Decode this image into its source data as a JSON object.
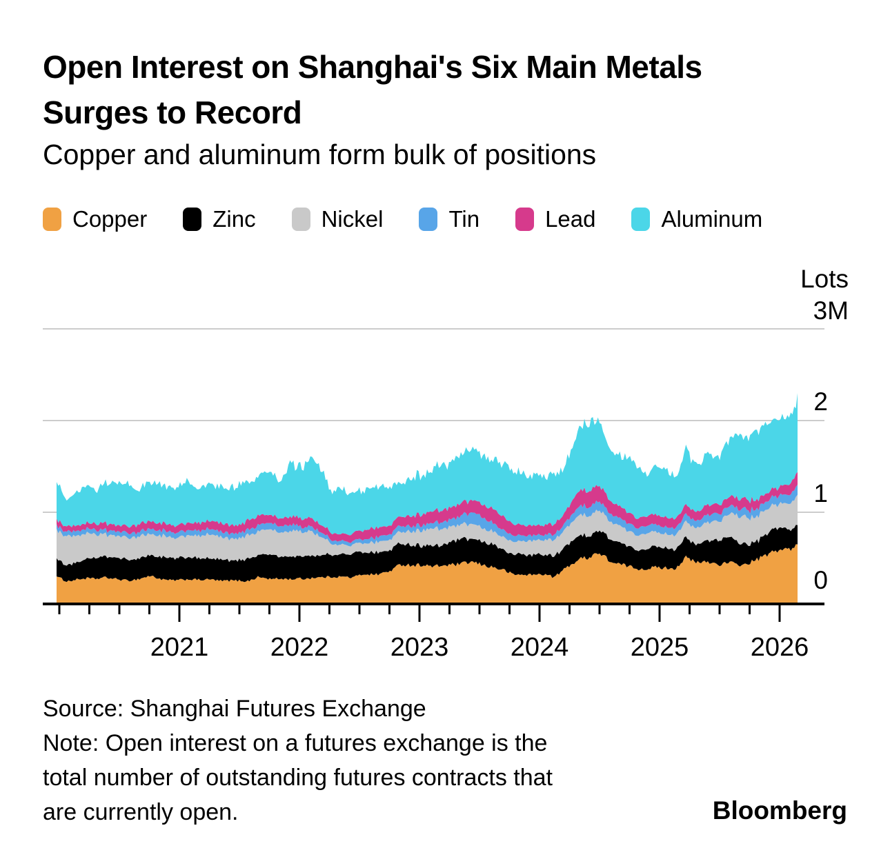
{
  "header": {
    "title_line1": "Open Interest on Shanghai's Six Main Metals",
    "title_line2": "Surges to Record",
    "subtitle": "Copper and aluminum form bulk of positions"
  },
  "legend": {
    "items": [
      {
        "label": "Copper",
        "color": "#F0A143"
      },
      {
        "label": "Zinc",
        "color": "#000000"
      },
      {
        "label": "Nickel",
        "color": "#C9C9C9"
      },
      {
        "label": "Tin",
        "color": "#58A5E8"
      },
      {
        "label": "Lead",
        "color": "#D63A8C"
      },
      {
        "label": "Aluminum",
        "color": "#4BD6E8"
      }
    ]
  },
  "footer": {
    "source": "Source: Shanghai Futures Exchange",
    "note_lines": [
      "Note: Open interest on a futures exchange is the",
      "total number of outstanding futures contracts that",
      "are currently open."
    ],
    "brand": "Bloomberg"
  },
  "chart_data": {
    "type": "area",
    "stacked": true,
    "title": "Open Interest on Shanghai's Six Main Metals Surges to Record",
    "subtitle": "Copper and aluminum form bulk of positions",
    "unit_label": "Lots",
    "y_top_label": "3M",
    "y_ticks": [
      0,
      1,
      2
    ],
    "y_max": 3,
    "ylim": [
      0,
      3
    ],
    "grid_color": "#CCCCCC",
    "axis_color": "#000000",
    "x_start": "2020-01",
    "x_end": "2026-02",
    "sampling": "monthly",
    "x_tick_years": [
      2021,
      2022,
      2023,
      2024,
      2025,
      2026
    ],
    "values_unit": "millions of lots",
    "series": [
      {
        "name": "Copper",
        "color": "#F0A143",
        "values": [
          0.3,
          0.26,
          0.27,
          0.28,
          0.27,
          0.28,
          0.28,
          0.27,
          0.28,
          0.29,
          0.28,
          0.27,
          0.27,
          0.28,
          0.27,
          0.26,
          0.26,
          0.27,
          0.27,
          0.26,
          0.28,
          0.29,
          0.28,
          0.28,
          0.29,
          0.29,
          0.28,
          0.28,
          0.28,
          0.3,
          0.32,
          0.33,
          0.35,
          0.38,
          0.42,
          0.43,
          0.42,
          0.4,
          0.41,
          0.42,
          0.43,
          0.44,
          0.43,
          0.42,
          0.38,
          0.32,
          0.31,
          0.31,
          0.33,
          0.31,
          0.36,
          0.44,
          0.52,
          0.57,
          0.52,
          0.46,
          0.42,
          0.41,
          0.38,
          0.39,
          0.38,
          0.37,
          0.5,
          0.48,
          0.46,
          0.44,
          0.44,
          0.43,
          0.44,
          0.47,
          0.52,
          0.58,
          0.62,
          0.65
        ]
      },
      {
        "name": "Zinc",
        "color": "#000000",
        "values": [
          0.2,
          0.18,
          0.2,
          0.22,
          0.23,
          0.23,
          0.23,
          0.24,
          0.23,
          0.23,
          0.23,
          0.23,
          0.23,
          0.24,
          0.23,
          0.23,
          0.22,
          0.22,
          0.22,
          0.23,
          0.24,
          0.25,
          0.24,
          0.24,
          0.24,
          0.24,
          0.25,
          0.24,
          0.24,
          0.25,
          0.24,
          0.23,
          0.23,
          0.23,
          0.23,
          0.22,
          0.21,
          0.22,
          0.23,
          0.25,
          0.26,
          0.26,
          0.25,
          0.24,
          0.22,
          0.21,
          0.22,
          0.22,
          0.22,
          0.22,
          0.24,
          0.25,
          0.24,
          0.24,
          0.25,
          0.24,
          0.23,
          0.22,
          0.22,
          0.22,
          0.22,
          0.22,
          0.21,
          0.2,
          0.24,
          0.26,
          0.28,
          0.25,
          0.22,
          0.2,
          0.22,
          0.24,
          0.22,
          0.21
        ]
      },
      {
        "name": "Nickel",
        "color": "#C9C9C9",
        "values": [
          0.32,
          0.33,
          0.3,
          0.28,
          0.26,
          0.25,
          0.24,
          0.24,
          0.23,
          0.23,
          0.22,
          0.22,
          0.22,
          0.23,
          0.24,
          0.25,
          0.25,
          0.24,
          0.24,
          0.25,
          0.26,
          0.27,
          0.27,
          0.27,
          0.28,
          0.28,
          0.2,
          0.12,
          0.1,
          0.1,
          0.1,
          0.11,
          0.12,
          0.12,
          0.13,
          0.15,
          0.17,
          0.19,
          0.18,
          0.17,
          0.16,
          0.16,
          0.15,
          0.15,
          0.14,
          0.14,
          0.15,
          0.16,
          0.16,
          0.17,
          0.18,
          0.2,
          0.21,
          0.21,
          0.2,
          0.19,
          0.18,
          0.17,
          0.16,
          0.16,
          0.16,
          0.16,
          0.17,
          0.18,
          0.19,
          0.21,
          0.24,
          0.27,
          0.29,
          0.28,
          0.27,
          0.26,
          0.28,
          0.33
        ]
      },
      {
        "name": "Tin",
        "color": "#58A5E8",
        "values": [
          0.05,
          0.05,
          0.05,
          0.05,
          0.05,
          0.05,
          0.05,
          0.05,
          0.05,
          0.06,
          0.06,
          0.06,
          0.06,
          0.06,
          0.06,
          0.06,
          0.06,
          0.06,
          0.06,
          0.06,
          0.07,
          0.07,
          0.07,
          0.07,
          0.05,
          0.05,
          0.05,
          0.04,
          0.04,
          0.04,
          0.04,
          0.05,
          0.06,
          0.06,
          0.07,
          0.06,
          0.06,
          0.06,
          0.07,
          0.08,
          0.1,
          0.12,
          0.11,
          0.09,
          0.08,
          0.07,
          0.06,
          0.06,
          0.06,
          0.06,
          0.07,
          0.09,
          0.1,
          0.1,
          0.09,
          0.08,
          0.08,
          0.08,
          0.08,
          0.08,
          0.08,
          0.08,
          0.08,
          0.08,
          0.08,
          0.08,
          0.08,
          0.08,
          0.08,
          0.08,
          0.09,
          0.09,
          0.1,
          0.11
        ]
      },
      {
        "name": "Lead",
        "color": "#D63A8C",
        "values": [
          0.06,
          0.06,
          0.06,
          0.06,
          0.07,
          0.08,
          0.07,
          0.07,
          0.08,
          0.08,
          0.08,
          0.08,
          0.08,
          0.08,
          0.08,
          0.09,
          0.09,
          0.09,
          0.09,
          0.1,
          0.1,
          0.09,
          0.09,
          0.09,
          0.09,
          0.09,
          0.08,
          0.08,
          0.08,
          0.09,
          0.1,
          0.11,
          0.1,
          0.1,
          0.1,
          0.11,
          0.12,
          0.13,
          0.13,
          0.13,
          0.14,
          0.14,
          0.15,
          0.15,
          0.14,
          0.12,
          0.11,
          0.11,
          0.11,
          0.11,
          0.12,
          0.15,
          0.17,
          0.18,
          0.16,
          0.14,
          0.12,
          0.11,
          0.11,
          0.11,
          0.11,
          0.11,
          0.11,
          0.1,
          0.1,
          0.1,
          0.1,
          0.11,
          0.11,
          0.1,
          0.09,
          0.09,
          0.11,
          0.14
        ]
      },
      {
        "name": "Aluminum",
        "color": "#4BD6E8",
        "values": [
          0.4,
          0.27,
          0.35,
          0.4,
          0.38,
          0.45,
          0.5,
          0.45,
          0.4,
          0.45,
          0.44,
          0.42,
          0.44,
          0.46,
          0.4,
          0.43,
          0.38,
          0.42,
          0.48,
          0.42,
          0.45,
          0.47,
          0.37,
          0.6,
          0.6,
          0.66,
          0.64,
          0.46,
          0.48,
          0.45,
          0.45,
          0.42,
          0.41,
          0.39,
          0.37,
          0.41,
          0.44,
          0.44,
          0.48,
          0.5,
          0.51,
          0.56,
          0.51,
          0.53,
          0.56,
          0.56,
          0.6,
          0.54,
          0.52,
          0.51,
          0.53,
          0.62,
          0.71,
          0.69,
          0.58,
          0.59,
          0.57,
          0.56,
          0.45,
          0.49,
          0.5,
          0.44,
          0.65,
          0.56,
          0.5,
          0.53,
          0.58,
          0.69,
          0.66,
          0.72,
          0.76,
          0.79,
          0.77,
          0.86
        ]
      }
    ]
  }
}
